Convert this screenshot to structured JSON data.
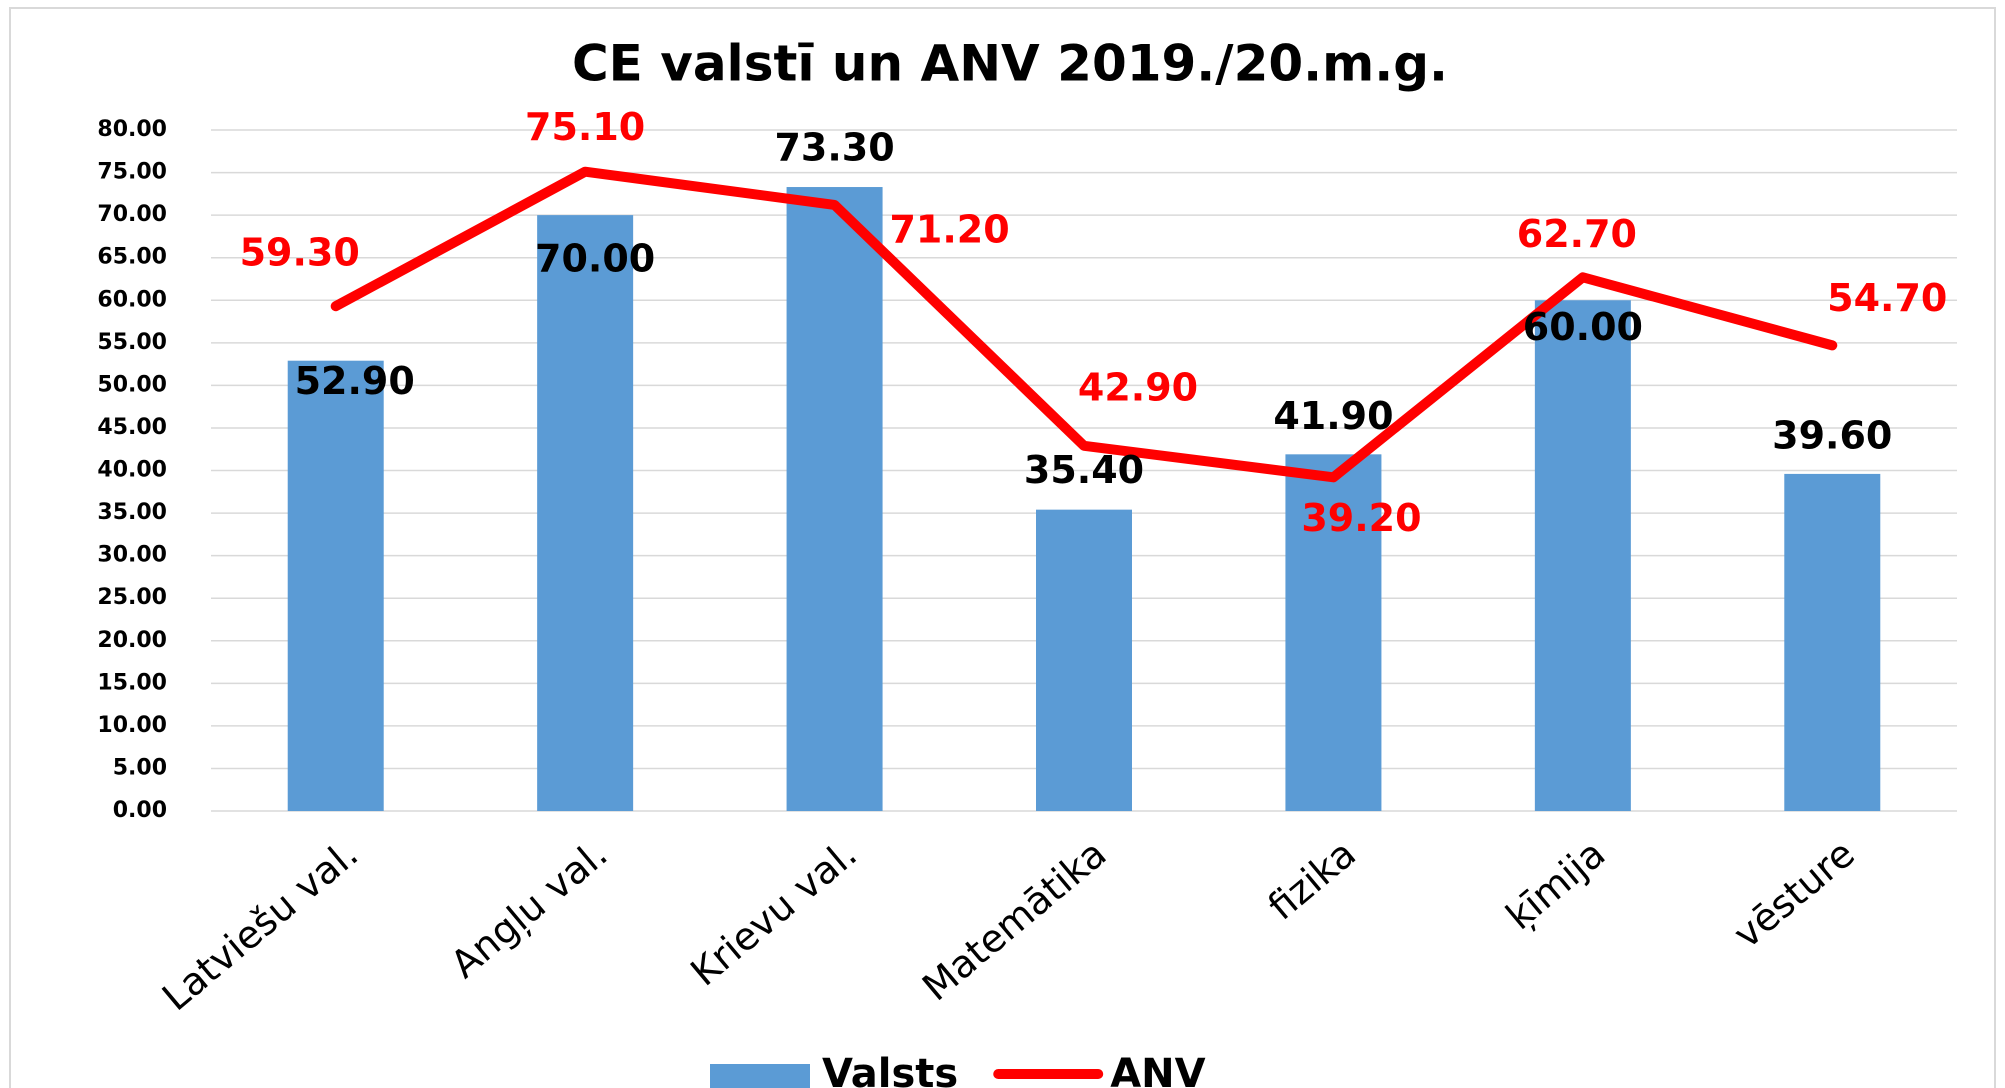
{
  "chart_data": {
    "type": "bar_line",
    "title": "CE valstī un ANV 2019./20.m.g.",
    "categories": [
      "Latviešu val.",
      "Angļu val.",
      "Krievu val.",
      "Matemātika",
      "fizika",
      "ķīmija",
      "vēsture"
    ],
    "series": [
      {
        "name": "Valsts",
        "type": "bar",
        "color": "#5b9bd5",
        "values": [
          52.9,
          70.0,
          73.3,
          35.4,
          41.9,
          60.0,
          39.6
        ],
        "value_labels": [
          "52.90",
          "70.00",
          "73.30",
          "35.40",
          "41.90",
          "60.00",
          "39.60"
        ]
      },
      {
        "name": "ANV",
        "type": "line",
        "color": "#ff0000",
        "values": [
          59.3,
          75.1,
          71.2,
          42.9,
          39.2,
          62.7,
          54.7
        ],
        "value_labels": [
          "59.30",
          "75.10",
          "71.20",
          "42.90",
          "39.20",
          "62.70",
          "54.70"
        ]
      }
    ],
    "ylim": [
      0,
      80
    ],
    "yticks": [
      {
        "value": 0,
        "label": "0.00"
      },
      {
        "value": 5,
        "label": "5.00"
      },
      {
        "value": 10,
        "label": "10.00"
      },
      {
        "value": 15,
        "label": "15.00"
      },
      {
        "value": 20,
        "label": "20.00"
      },
      {
        "value": 25,
        "label": "25.00"
      },
      {
        "value": 30,
        "label": "30.00"
      },
      {
        "value": 35,
        "label": "35.00"
      },
      {
        "value": 40,
        "label": "40.00"
      },
      {
        "value": 45,
        "label": "45.00"
      },
      {
        "value": 50,
        "label": "50.00"
      },
      {
        "value": 55,
        "label": "55.00"
      },
      {
        "value": 60,
        "label": "60.00"
      },
      {
        "value": 65,
        "label": "65.00"
      },
      {
        "value": 70,
        "label": "70.00"
      },
      {
        "value": 75,
        "label": "75.00"
      },
      {
        "value": 80,
        "label": "80.00"
      }
    ],
    "grid": true,
    "legend": "bottom"
  }
}
